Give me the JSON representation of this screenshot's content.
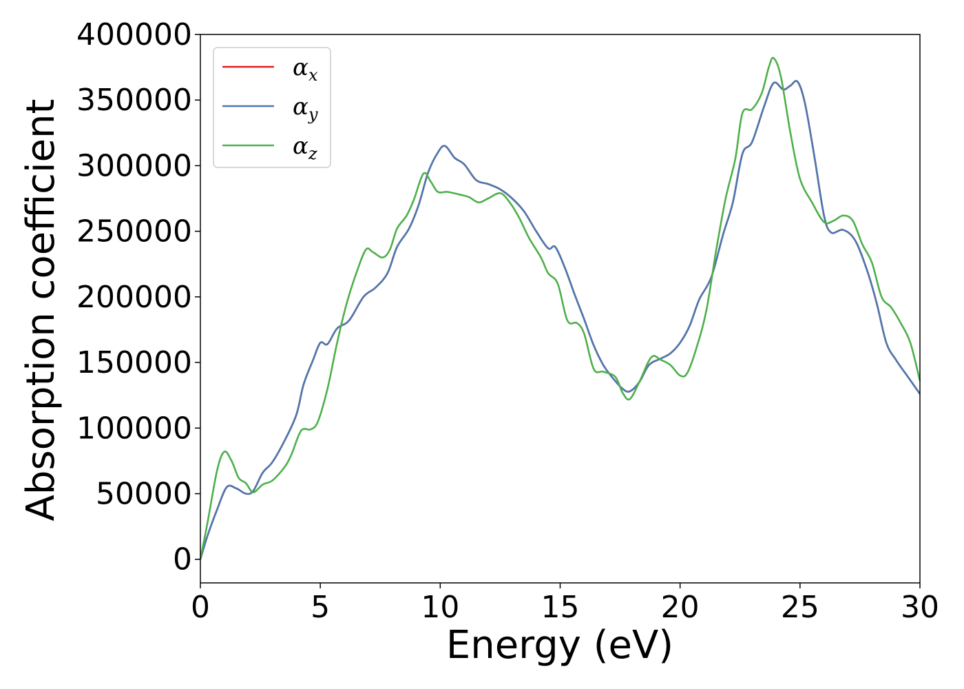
{
  "chart_data": {
    "type": "line",
    "xlabel": "Energy (eV)",
    "ylabel": "Absorption coefficient",
    "xlim": [
      0,
      30
    ],
    "ylim": [
      -18000,
      400000
    ],
    "x_ticks": [
      0,
      5,
      10,
      15,
      20,
      25,
      30
    ],
    "y_ticks": [
      0,
      50000,
      100000,
      150000,
      200000,
      250000,
      300000,
      350000,
      400000
    ],
    "grid": false,
    "legend_position": "top-left",
    "series": [
      {
        "name": "α",
        "sub": "x",
        "color": "#e41a1c",
        "points": [
          [
            0,
            0
          ],
          [
            0.3,
            18000
          ],
          [
            0.7,
            38000
          ],
          [
            1.1,
            55000
          ],
          [
            1.5,
            54000
          ],
          [
            1.9,
            50000
          ],
          [
            2.2,
            52000
          ],
          [
            2.6,
            66000
          ],
          [
            3,
            74000
          ],
          [
            3.5,
            90000
          ],
          [
            4,
            110000
          ],
          [
            4.3,
            133000
          ],
          [
            4.7,
            152000
          ],
          [
            5,
            165000
          ],
          [
            5.3,
            164000
          ],
          [
            5.7,
            176000
          ],
          [
            6.2,
            182000
          ],
          [
            6.8,
            200000
          ],
          [
            7.3,
            207000
          ],
          [
            7.8,
            218000
          ],
          [
            8.2,
            238000
          ],
          [
            8.7,
            252000
          ],
          [
            9.1,
            270000
          ],
          [
            9.5,
            295000
          ],
          [
            9.9,
            310000
          ],
          [
            10.2,
            315000
          ],
          [
            10.6,
            306000
          ],
          [
            11,
            301000
          ],
          [
            11.5,
            289000
          ],
          [
            12,
            286000
          ],
          [
            12.5,
            282000
          ],
          [
            13,
            275000
          ],
          [
            13.5,
            265000
          ],
          [
            14,
            250000
          ],
          [
            14.5,
            237000
          ],
          [
            14.8,
            238000
          ],
          [
            15.2,
            222000
          ],
          [
            15.6,
            202000
          ],
          [
            16,
            183000
          ],
          [
            16.4,
            163000
          ],
          [
            16.8,
            148000
          ],
          [
            17.2,
            138000
          ],
          [
            17.6,
            130000
          ],
          [
            17.9,
            128000
          ],
          [
            18.3,
            135000
          ],
          [
            18.7,
            148000
          ],
          [
            19.2,
            153000
          ],
          [
            19.6,
            157000
          ],
          [
            20,
            165000
          ],
          [
            20.4,
            178000
          ],
          [
            20.8,
            198000
          ],
          [
            21.3,
            215000
          ],
          [
            21.8,
            248000
          ],
          [
            22.2,
            272000
          ],
          [
            22.6,
            309000
          ],
          [
            23,
            318000
          ],
          [
            23.5,
            345000
          ],
          [
            23.9,
            363000
          ],
          [
            24.3,
            358000
          ],
          [
            24.6,
            361000
          ],
          [
            24.9,
            364000
          ],
          [
            25.2,
            348000
          ],
          [
            25.6,
            307000
          ],
          [
            26,
            262000
          ],
          [
            26.3,
            249000
          ],
          [
            26.8,
            251000
          ],
          [
            27.3,
            243000
          ],
          [
            27.8,
            220000
          ],
          [
            28.2,
            195000
          ],
          [
            28.6,
            165000
          ],
          [
            29,
            152000
          ],
          [
            29.5,
            139000
          ],
          [
            30,
            126000
          ]
        ]
      },
      {
        "name": "α",
        "sub": "y",
        "color": "#4a78b0",
        "points": [
          [
            0,
            0
          ],
          [
            0.3,
            18000
          ],
          [
            0.7,
            38000
          ],
          [
            1.1,
            55000
          ],
          [
            1.5,
            54000
          ],
          [
            1.9,
            50000
          ],
          [
            2.2,
            52000
          ],
          [
            2.6,
            66000
          ],
          [
            3,
            74000
          ],
          [
            3.5,
            90000
          ],
          [
            4,
            110000
          ],
          [
            4.3,
            133000
          ],
          [
            4.7,
            152000
          ],
          [
            5,
            165000
          ],
          [
            5.3,
            164000
          ],
          [
            5.7,
            176000
          ],
          [
            6.2,
            182000
          ],
          [
            6.8,
            200000
          ],
          [
            7.3,
            207000
          ],
          [
            7.8,
            218000
          ],
          [
            8.2,
            238000
          ],
          [
            8.7,
            252000
          ],
          [
            9.1,
            270000
          ],
          [
            9.5,
            295000
          ],
          [
            9.9,
            310000
          ],
          [
            10.2,
            315000
          ],
          [
            10.6,
            306000
          ],
          [
            11,
            301000
          ],
          [
            11.5,
            289000
          ],
          [
            12,
            286000
          ],
          [
            12.5,
            282000
          ],
          [
            13,
            275000
          ],
          [
            13.5,
            265000
          ],
          [
            14,
            250000
          ],
          [
            14.5,
            237000
          ],
          [
            14.8,
            238000
          ],
          [
            15.2,
            222000
          ],
          [
            15.6,
            202000
          ],
          [
            16,
            183000
          ],
          [
            16.4,
            163000
          ],
          [
            16.8,
            148000
          ],
          [
            17.2,
            138000
          ],
          [
            17.6,
            130000
          ],
          [
            17.9,
            128000
          ],
          [
            18.3,
            135000
          ],
          [
            18.7,
            148000
          ],
          [
            19.2,
            153000
          ],
          [
            19.6,
            157000
          ],
          [
            20,
            165000
          ],
          [
            20.4,
            178000
          ],
          [
            20.8,
            198000
          ],
          [
            21.3,
            215000
          ],
          [
            21.8,
            248000
          ],
          [
            22.2,
            272000
          ],
          [
            22.6,
            309000
          ],
          [
            23,
            318000
          ],
          [
            23.5,
            345000
          ],
          [
            23.9,
            363000
          ],
          [
            24.3,
            358000
          ],
          [
            24.6,
            361000
          ],
          [
            24.9,
            364000
          ],
          [
            25.2,
            348000
          ],
          [
            25.6,
            307000
          ],
          [
            26,
            262000
          ],
          [
            26.3,
            249000
          ],
          [
            26.8,
            251000
          ],
          [
            27.3,
            243000
          ],
          [
            27.8,
            220000
          ],
          [
            28.2,
            195000
          ],
          [
            28.6,
            165000
          ],
          [
            29,
            152000
          ],
          [
            29.5,
            139000
          ],
          [
            30,
            126000
          ]
        ]
      },
      {
        "name": "α",
        "sub": "z",
        "color": "#4daf4a",
        "points": [
          [
            0,
            0
          ],
          [
            0.3,
            28000
          ],
          [
            0.7,
            68000
          ],
          [
            1,
            82000
          ],
          [
            1.3,
            75000
          ],
          [
            1.6,
            62000
          ],
          [
            1.9,
            58000
          ],
          [
            2.2,
            51000
          ],
          [
            2.6,
            57000
          ],
          [
            3,
            60000
          ],
          [
            3.5,
            70000
          ],
          [
            3.8,
            80000
          ],
          [
            4.2,
            98000
          ],
          [
            4.6,
            99000
          ],
          [
            4.9,
            105000
          ],
          [
            5.3,
            130000
          ],
          [
            5.7,
            165000
          ],
          [
            6.1,
            195000
          ],
          [
            6.5,
            218000
          ],
          [
            6.9,
            236000
          ],
          [
            7.2,
            234000
          ],
          [
            7.6,
            230000
          ],
          [
            7.9,
            236000
          ],
          [
            8.2,
            252000
          ],
          [
            8.6,
            262000
          ],
          [
            8.9,
            274000
          ],
          [
            9.3,
            294000
          ],
          [
            9.6,
            288000
          ],
          [
            9.9,
            280000
          ],
          [
            10.3,
            280000
          ],
          [
            10.8,
            278000
          ],
          [
            11.2,
            276000
          ],
          [
            11.6,
            272000
          ],
          [
            12,
            275000
          ],
          [
            12.5,
            279000
          ],
          [
            12.9,
            272000
          ],
          [
            13.3,
            260000
          ],
          [
            13.7,
            245000
          ],
          [
            14.2,
            230000
          ],
          [
            14.5,
            218000
          ],
          [
            14.9,
            210000
          ],
          [
            15.3,
            182000
          ],
          [
            15.7,
            180000
          ],
          [
            16,
            172000
          ],
          [
            16.4,
            145000
          ],
          [
            16.8,
            143000
          ],
          [
            17.3,
            139000
          ],
          [
            17.6,
            127000
          ],
          [
            17.9,
            122000
          ],
          [
            18.3,
            135000
          ],
          [
            18.8,
            154000
          ],
          [
            19.2,
            152000
          ],
          [
            19.6,
            148000
          ],
          [
            20,
            140000
          ],
          [
            20.3,
            142000
          ],
          [
            20.7,
            162000
          ],
          [
            21.1,
            190000
          ],
          [
            21.5,
            235000
          ],
          [
            21.9,
            275000
          ],
          [
            22.3,
            305000
          ],
          [
            22.6,
            340000
          ],
          [
            23,
            343000
          ],
          [
            23.4,
            355000
          ],
          [
            23.7,
            375000
          ],
          [
            23.9,
            382000
          ],
          [
            24.2,
            368000
          ],
          [
            24.6,
            325000
          ],
          [
            25,
            290000
          ],
          [
            25.5,
            272000
          ],
          [
            26,
            257000
          ],
          [
            26.4,
            258000
          ],
          [
            26.8,
            262000
          ],
          [
            27.2,
            258000
          ],
          [
            27.6,
            240000
          ],
          [
            28,
            226000
          ],
          [
            28.4,
            200000
          ],
          [
            28.8,
            192000
          ],
          [
            29.2,
            180000
          ],
          [
            29.6,
            165000
          ],
          [
            30,
            136000
          ]
        ]
      }
    ]
  }
}
